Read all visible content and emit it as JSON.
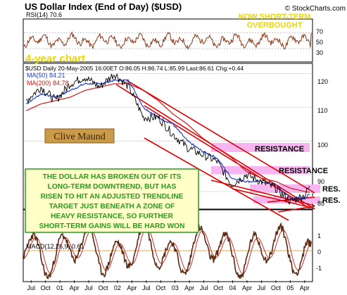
{
  "header": {
    "title": "US Dollar Index (End of Day) ($USD)",
    "credit": "© StockCharts.com"
  },
  "rsi": {
    "label": "RSI(14) 70.6",
    "ticks": [
      "70",
      "50",
      "30"
    ],
    "note_line1": "NOW SHORT-TERM",
    "note_line2": "OVERBOUGHT"
  },
  "price": {
    "period_label": "4-year chart",
    "info_line": "$USD Daily 20-May-2005 16:00ET O:86.05 H:86.74 L:85.99 Last:86.61 Chg:+0.44",
    "ma50_label": "MA(50) 84.21",
    "ma200_label": "MA(200) 84.78",
    "y_ticks": [
      "120",
      "110",
      "100",
      "90",
      "85"
    ],
    "author": "Clive Maund",
    "commentary": [
      "THE DOLLAR HAS BROKEN OUT OF ITS",
      "LONG-TERM DOWNTREND, BUT HAS",
      "RISEN TO HIT AN ADJUSTED TRENDLINE",
      "TARGET JUST BENEATH A ZONE OF",
      "HEAVY RESISTANCE, SO FURTHER",
      "SHORT-TERM GAINS WILL BE HARD WON"
    ],
    "resistance_labels": [
      "RESISTANCE",
      "RESISTANCE",
      "RES.",
      "RES."
    ]
  },
  "macd": {
    "label": "MACD(12,26,9) 0.61",
    "ticks": [
      "1",
      "0",
      "-1"
    ]
  },
  "x_axis": {
    "ticks": [
      "Jul",
      "Oct",
      "01",
      "Apr",
      "Jul",
      "Oct",
      "02",
      "Apr",
      "Jul",
      "Oct",
      "03",
      "Apr",
      "Jul",
      "Oct",
      "04",
      "Apr",
      "Jul",
      "Oct",
      "05",
      "Apr"
    ]
  },
  "colors": {
    "price": "#000000",
    "ma50": "#1f3fd0",
    "ma200": "#d01818",
    "trendline": "#e00000",
    "resistance_band": "#f7b6f0",
    "commentary_bg": "#ffffc8",
    "commentary_text": "#2a9a1e",
    "note_text": "#e8d800",
    "rsi_line": "#8a3a1a",
    "macd_hist": "#e08a1a"
  },
  "chart_data": {
    "type": "line",
    "title": "US Dollar Index (End of Day) ($USD)",
    "x_range": [
      "2000-07",
      "2005-05"
    ],
    "price_ylim": [
      80,
      122
    ],
    "series": [
      {
        "name": "$USD",
        "x": [
          "2000-07",
          "2000-10",
          "2001-01",
          "2001-04",
          "2001-07",
          "2001-10",
          "2002-01",
          "2002-04",
          "2002-07",
          "2002-10",
          "2003-01",
          "2003-04",
          "2003-07",
          "2003-10",
          "2004-01",
          "2004-04",
          "2004-07",
          "2004-10",
          "2005-01",
          "2005-04",
          "2005-05"
        ],
        "values": [
          112,
          116,
          112,
          117,
          119,
          116,
          120,
          116,
          107,
          107,
          102,
          98,
          96,
          94,
          87,
          90,
          88,
          86,
          82,
          84,
          86.61
        ]
      },
      {
        "name": "MA(50)",
        "x": [
          "2000-07",
          "2000-10",
          "2001-01",
          "2001-04",
          "2001-07",
          "2001-10",
          "2002-01",
          "2002-04",
          "2002-07",
          "2002-10",
          "2003-01",
          "2003-04",
          "2003-07",
          "2003-10",
          "2004-01",
          "2004-04",
          "2004-07",
          "2004-10",
          "2005-01",
          "2005-04",
          "2005-05"
        ],
        "values": [
          111,
          114,
          113,
          115,
          117,
          117,
          118,
          118,
          110,
          107,
          105,
          100,
          97,
          95,
          89,
          88,
          88,
          87,
          83,
          83,
          84.21
        ]
      },
      {
        "name": "MA(200)",
        "x": [
          "2000-07",
          "2000-10",
          "2001-01",
          "2001-04",
          "2001-07",
          "2001-10",
          "2002-01",
          "2002-04",
          "2002-07",
          "2002-10",
          "2003-01",
          "2003-04",
          "2003-07",
          "2003-10",
          "2004-01",
          "2004-04",
          "2004-07",
          "2004-10",
          "2005-01",
          "2005-04",
          "2005-05"
        ],
        "values": [
          109,
          111,
          112,
          113,
          115,
          116,
          117,
          117,
          115,
          112,
          108,
          105,
          101,
          98,
          95,
          91,
          89,
          88,
          86,
          85,
          84.78
        ]
      }
    ]
  }
}
